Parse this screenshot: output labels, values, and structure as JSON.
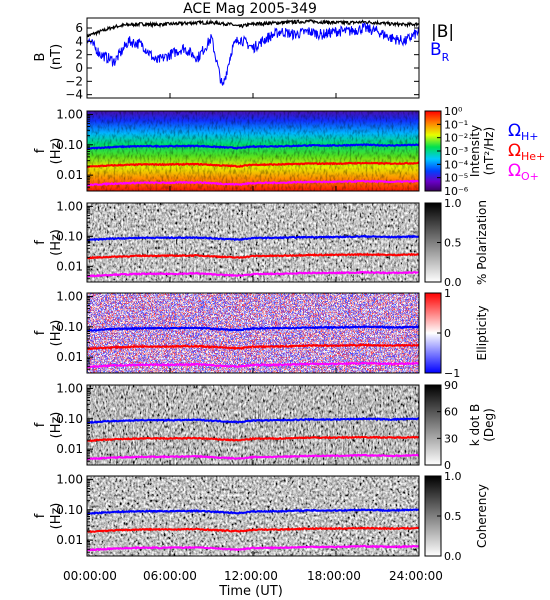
{
  "title": "ACE Mag 2005-349",
  "xlabel": "Time (UT)",
  "xticks": [
    "00:00:00",
    "06:00:00",
    "12:00:00",
    "18:00:00",
    "24:00:00"
  ],
  "panel1": {
    "ylabel_line1": "B",
    "ylabel_line2": "(nT)",
    "yticks": [
      "6",
      "4",
      "2",
      "0",
      "−2",
      "−4"
    ],
    "legend_total": "|B|",
    "legend_br": "B",
    "legend_br_sub": "R",
    "colors": {
      "total": "#000000",
      "br": "#0000ff"
    }
  },
  "spectro_ylabel_line1": "f",
  "spectro_ylabel_line2": "(Hz)",
  "freq_ticks": [
    "1.00",
    "0.10",
    "0.01"
  ],
  "gyro_legend": [
    {
      "symbol": "Ω",
      "sub": "H+",
      "color": "#0000ff"
    },
    {
      "symbol": "Ω",
      "sub": "He+",
      "color": "#ff0000"
    },
    {
      "symbol": "Ω",
      "sub": "O+",
      "color": "#ff00ff"
    }
  ],
  "colorbars": [
    {
      "label_line1": "Intensity",
      "label_line2": "(nT²/Hz)",
      "ticks": [
        "10⁰",
        "10⁻¹",
        "10⁻²",
        "10⁻³",
        "10⁻⁴",
        "10⁻⁵",
        "10⁻⁶"
      ],
      "scheme": "rainbow"
    },
    {
      "label_line1": "% Polarization",
      "label_line2": "",
      "ticks": [
        "1.0",
        "0.5",
        "0.0"
      ],
      "scheme": "gray"
    },
    {
      "label_line1": "Ellipticity",
      "label_line2": "",
      "ticks": [
        "1",
        "0",
        "−1"
      ],
      "scheme": "bwr"
    },
    {
      "label_line1": "k dot B",
      "label_line2": "(Deg)",
      "ticks": [
        "90",
        "60",
        "30",
        "0"
      ],
      "scheme": "gray"
    },
    {
      "label_line1": "Coherency",
      "label_line2": "",
      "ticks": [
        "1.0",
        "0.5",
        "0.0"
      ],
      "scheme": "gray"
    }
  ],
  "chart_data": {
    "type": "line",
    "title": "ACE Mag 2005-349",
    "xlabel": "Time (UT)",
    "xlim_hours": [
      0,
      24
    ],
    "panels": [
      {
        "name": "B",
        "ylabel": "B (nT)",
        "ylim": [
          -4.5,
          7.5
        ],
        "x_hours": [
          0,
          1,
          2,
          3,
          4,
          5,
          6,
          7,
          8,
          9,
          9.8,
          10.5,
          11,
          12,
          13,
          14,
          15,
          16,
          17,
          18,
          19,
          20,
          21,
          22,
          23,
          24
        ],
        "series": [
          {
            "name": "|B|",
            "values": [
              4.8,
              5.5,
              6.2,
              6.5,
              6.6,
              6.5,
              6.6,
              6.7,
              6.8,
              6.8,
              6.7,
              6.5,
              6.2,
              6.6,
              6.7,
              6.8,
              6.9,
              7.0,
              6.9,
              6.8,
              6.8,
              6.9,
              6.8,
              6.6,
              6.5,
              6.6
            ]
          },
          {
            "name": "B_R",
            "values": [
              4.5,
              2.0,
              1.0,
              4.0,
              3.5,
              1.0,
              2.0,
              3.0,
              1.5,
              4.5,
              -3.0,
              3.0,
              4.5,
              3.0,
              4.5,
              5.5,
              5.0,
              5.5,
              5.0,
              5.5,
              5.5,
              6.0,
              5.5,
              4.5,
              4.0,
              5.5
            ]
          }
        ]
      },
      {
        "name": "Gyrofrequencies",
        "ylabel": "f (Hz)",
        "yscale": "log",
        "ylim": [
          0.003,
          1.3
        ],
        "x_hours": [
          0,
          2,
          4,
          6,
          8,
          10,
          11,
          12,
          14,
          16,
          18,
          20,
          22,
          24
        ],
        "series": [
          {
            "name": "Ω_H+",
            "values": [
              0.075,
              0.085,
              0.09,
              0.09,
              0.092,
              0.082,
              0.078,
              0.088,
              0.09,
              0.095,
              0.095,
              0.1,
              0.095,
              0.1
            ]
          },
          {
            "name": "Ω_He+",
            "values": [
              0.019,
              0.021,
              0.0225,
              0.0225,
              0.023,
              0.0205,
              0.0195,
              0.022,
              0.0225,
              0.024,
              0.024,
              0.025,
              0.024,
              0.025
            ]
          },
          {
            "name": "Ω_O+",
            "values": [
              0.0047,
              0.0053,
              0.0056,
              0.0056,
              0.0058,
              0.0051,
              0.0049,
              0.0055,
              0.0056,
              0.006,
              0.006,
              0.0063,
              0.006,
              0.0063
            ]
          }
        ]
      }
    ]
  }
}
